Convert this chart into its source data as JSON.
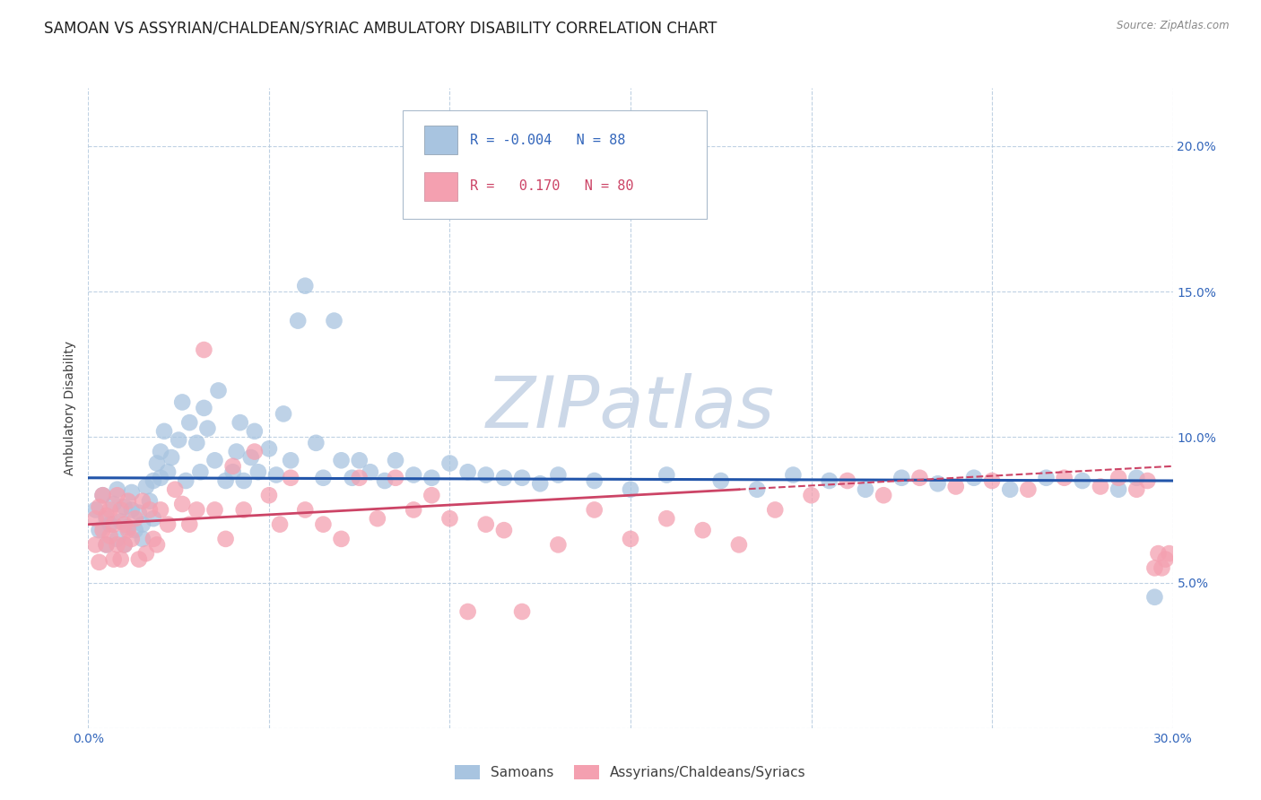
{
  "title": "SAMOAN VS ASSYRIAN/CHALDEAN/SYRIAC AMBULATORY DISABILITY CORRELATION CHART",
  "source": "Source: ZipAtlas.com",
  "ylabel": "Ambulatory Disability",
  "xlim": [
    0.0,
    0.3
  ],
  "ylim": [
    0.0,
    0.22
  ],
  "xtick_positions": [
    0.0,
    0.05,
    0.1,
    0.15,
    0.2,
    0.25,
    0.3
  ],
  "ytick_positions": [
    0.0,
    0.05,
    0.1,
    0.15,
    0.2
  ],
  "xtick_labels": [
    "0.0%",
    "",
    "",
    "",
    "",
    "",
    "30.0%"
  ],
  "ytick_labels_right": [
    "",
    "5.0%",
    "10.0%",
    "15.0%",
    "20.0%"
  ],
  "legend_r_blue": "-0.004",
  "legend_n_blue": "88",
  "legend_r_pink": "0.170",
  "legend_n_pink": "80",
  "legend_label_blue": "Samoans",
  "legend_label_pink": "Assyrians/Chaldeans/Syriacs",
  "blue_color": "#a8c4e0",
  "pink_color": "#f4a0b0",
  "trend_blue_color": "#2255aa",
  "trend_pink_color": "#cc4466",
  "watermark_color": "#ccd8e8",
  "title_fontsize": 12,
  "axis_label_fontsize": 10,
  "tick_fontsize": 10,
  "blue_scatter_x": [
    0.002,
    0.003,
    0.004,
    0.005,
    0.005,
    0.006,
    0.007,
    0.008,
    0.008,
    0.009,
    0.01,
    0.01,
    0.011,
    0.012,
    0.012,
    0.013,
    0.014,
    0.015,
    0.015,
    0.016,
    0.017,
    0.018,
    0.018,
    0.019,
    0.02,
    0.02,
    0.021,
    0.022,
    0.023,
    0.025,
    0.026,
    0.027,
    0.028,
    0.03,
    0.031,
    0.032,
    0.033,
    0.035,
    0.036,
    0.038,
    0.04,
    0.041,
    0.042,
    0.043,
    0.045,
    0.046,
    0.047,
    0.05,
    0.052,
    0.054,
    0.056,
    0.058,
    0.06,
    0.063,
    0.065,
    0.068,
    0.07,
    0.073,
    0.075,
    0.078,
    0.082,
    0.085,
    0.09,
    0.095,
    0.1,
    0.105,
    0.11,
    0.115,
    0.12,
    0.125,
    0.13,
    0.14,
    0.15,
    0.16,
    0.175,
    0.185,
    0.195,
    0.205,
    0.215,
    0.225,
    0.235,
    0.245,
    0.255,
    0.265,
    0.275,
    0.285,
    0.29,
    0.295
  ],
  "blue_scatter_y": [
    0.075,
    0.068,
    0.08,
    0.072,
    0.063,
    0.07,
    0.077,
    0.065,
    0.082,
    0.071,
    0.076,
    0.063,
    0.069,
    0.075,
    0.081,
    0.068,
    0.074,
    0.07,
    0.065,
    0.083,
    0.078,
    0.085,
    0.072,
    0.091,
    0.086,
    0.095,
    0.102,
    0.088,
    0.093,
    0.099,
    0.112,
    0.085,
    0.105,
    0.098,
    0.088,
    0.11,
    0.103,
    0.092,
    0.116,
    0.085,
    0.088,
    0.095,
    0.105,
    0.085,
    0.093,
    0.102,
    0.088,
    0.096,
    0.087,
    0.108,
    0.092,
    0.14,
    0.152,
    0.098,
    0.086,
    0.14,
    0.092,
    0.086,
    0.092,
    0.088,
    0.085,
    0.092,
    0.087,
    0.086,
    0.091,
    0.088,
    0.087,
    0.086,
    0.086,
    0.084,
    0.087,
    0.085,
    0.082,
    0.087,
    0.085,
    0.082,
    0.087,
    0.085,
    0.082,
    0.086,
    0.084,
    0.086,
    0.082,
    0.086,
    0.085,
    0.082,
    0.086,
    0.045
  ],
  "blue_trend_x": [
    0.0,
    0.3
  ],
  "blue_trend_y": [
    0.086,
    0.085
  ],
  "pink_scatter_x": [
    0.002,
    0.002,
    0.003,
    0.003,
    0.004,
    0.004,
    0.005,
    0.005,
    0.006,
    0.006,
    0.007,
    0.007,
    0.008,
    0.008,
    0.009,
    0.009,
    0.01,
    0.01,
    0.011,
    0.011,
    0.012,
    0.013,
    0.014,
    0.015,
    0.016,
    0.017,
    0.018,
    0.019,
    0.02,
    0.022,
    0.024,
    0.026,
    0.028,
    0.03,
    0.032,
    0.035,
    0.038,
    0.04,
    0.043,
    0.046,
    0.05,
    0.053,
    0.056,
    0.06,
    0.065,
    0.07,
    0.075,
    0.08,
    0.085,
    0.09,
    0.095,
    0.1,
    0.105,
    0.11,
    0.115,
    0.12,
    0.13,
    0.14,
    0.15,
    0.16,
    0.17,
    0.18,
    0.19,
    0.2,
    0.21,
    0.22,
    0.23,
    0.24,
    0.25,
    0.26,
    0.27,
    0.28,
    0.285,
    0.29,
    0.293,
    0.295,
    0.296,
    0.297,
    0.298,
    0.299
  ],
  "pink_scatter_y": [
    0.072,
    0.063,
    0.076,
    0.057,
    0.068,
    0.08,
    0.073,
    0.063,
    0.066,
    0.075,
    0.07,
    0.058,
    0.063,
    0.08,
    0.075,
    0.058,
    0.07,
    0.063,
    0.078,
    0.068,
    0.065,
    0.072,
    0.058,
    0.078,
    0.06,
    0.075,
    0.065,
    0.063,
    0.075,
    0.07,
    0.082,
    0.077,
    0.07,
    0.075,
    0.13,
    0.075,
    0.065,
    0.09,
    0.075,
    0.095,
    0.08,
    0.07,
    0.086,
    0.075,
    0.07,
    0.065,
    0.086,
    0.072,
    0.086,
    0.075,
    0.08,
    0.072,
    0.04,
    0.07,
    0.068,
    0.04,
    0.063,
    0.075,
    0.065,
    0.072,
    0.068,
    0.063,
    0.075,
    0.08,
    0.085,
    0.08,
    0.086,
    0.083,
    0.085,
    0.082,
    0.086,
    0.083,
    0.086,
    0.082,
    0.085,
    0.055,
    0.06,
    0.055,
    0.058,
    0.06
  ],
  "pink_trend_x": [
    0.0,
    0.3
  ],
  "pink_trend_y": [
    0.07,
    0.09
  ]
}
